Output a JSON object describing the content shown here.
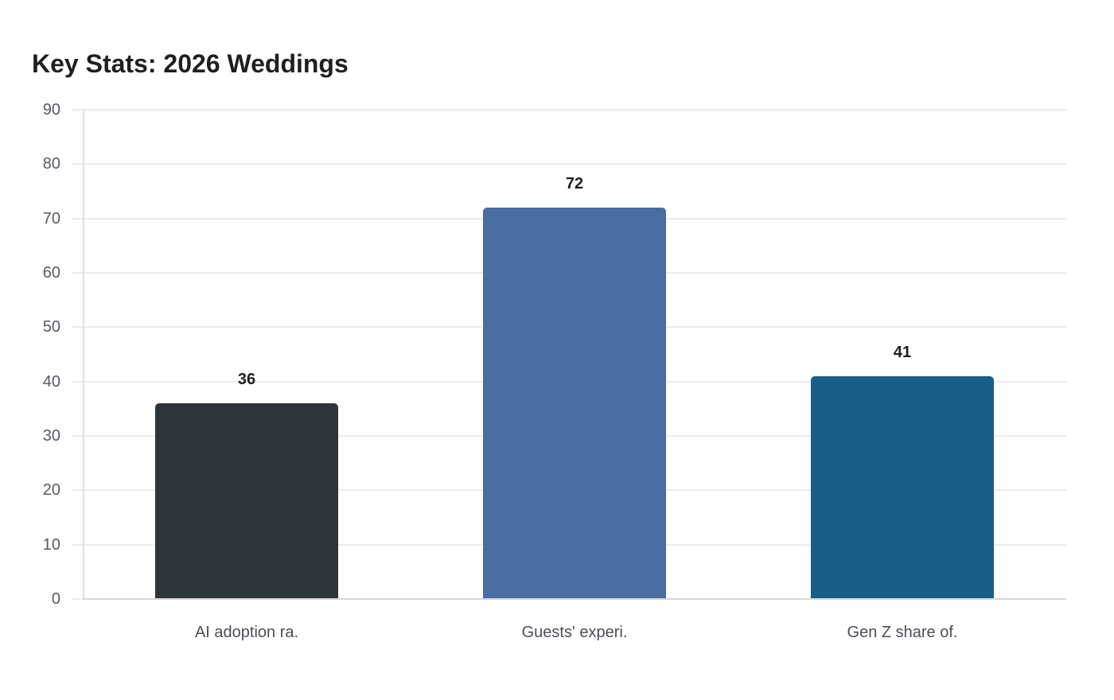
{
  "title": "Key Stats: 2026 Weddings",
  "chart_data": {
    "type": "bar",
    "title": "Key Stats: 2026 Weddings",
    "xlabel": "",
    "ylabel": "",
    "categories": [
      "AI adoption ra.",
      "Guests' experi.",
      "Gen Z share of."
    ],
    "values": [
      36,
      72,
      41
    ],
    "colors": [
      "#2e3538",
      "#4a6da2",
      "#175f87"
    ],
    "ylim": [
      0,
      90
    ],
    "yticks": [
      0,
      10,
      20,
      30,
      40,
      50,
      60,
      70,
      80,
      90
    ],
    "grid": true,
    "legend": null,
    "data_labels": true
  },
  "y_axis": {
    "ticks": [
      "0",
      "10",
      "20",
      "30",
      "40",
      "50",
      "60",
      "70",
      "80",
      "90"
    ]
  },
  "bars": [
    {
      "label": "AI adoption ra.",
      "value": 36,
      "value_label": "36",
      "color": "#2e3538"
    },
    {
      "label": "Guests' experi.",
      "value": 72,
      "value_label": "72",
      "color": "#4a6da2"
    },
    {
      "label": "Gen Z share of.",
      "value": 41,
      "value_label": "41",
      "color": "#175f87"
    }
  ]
}
